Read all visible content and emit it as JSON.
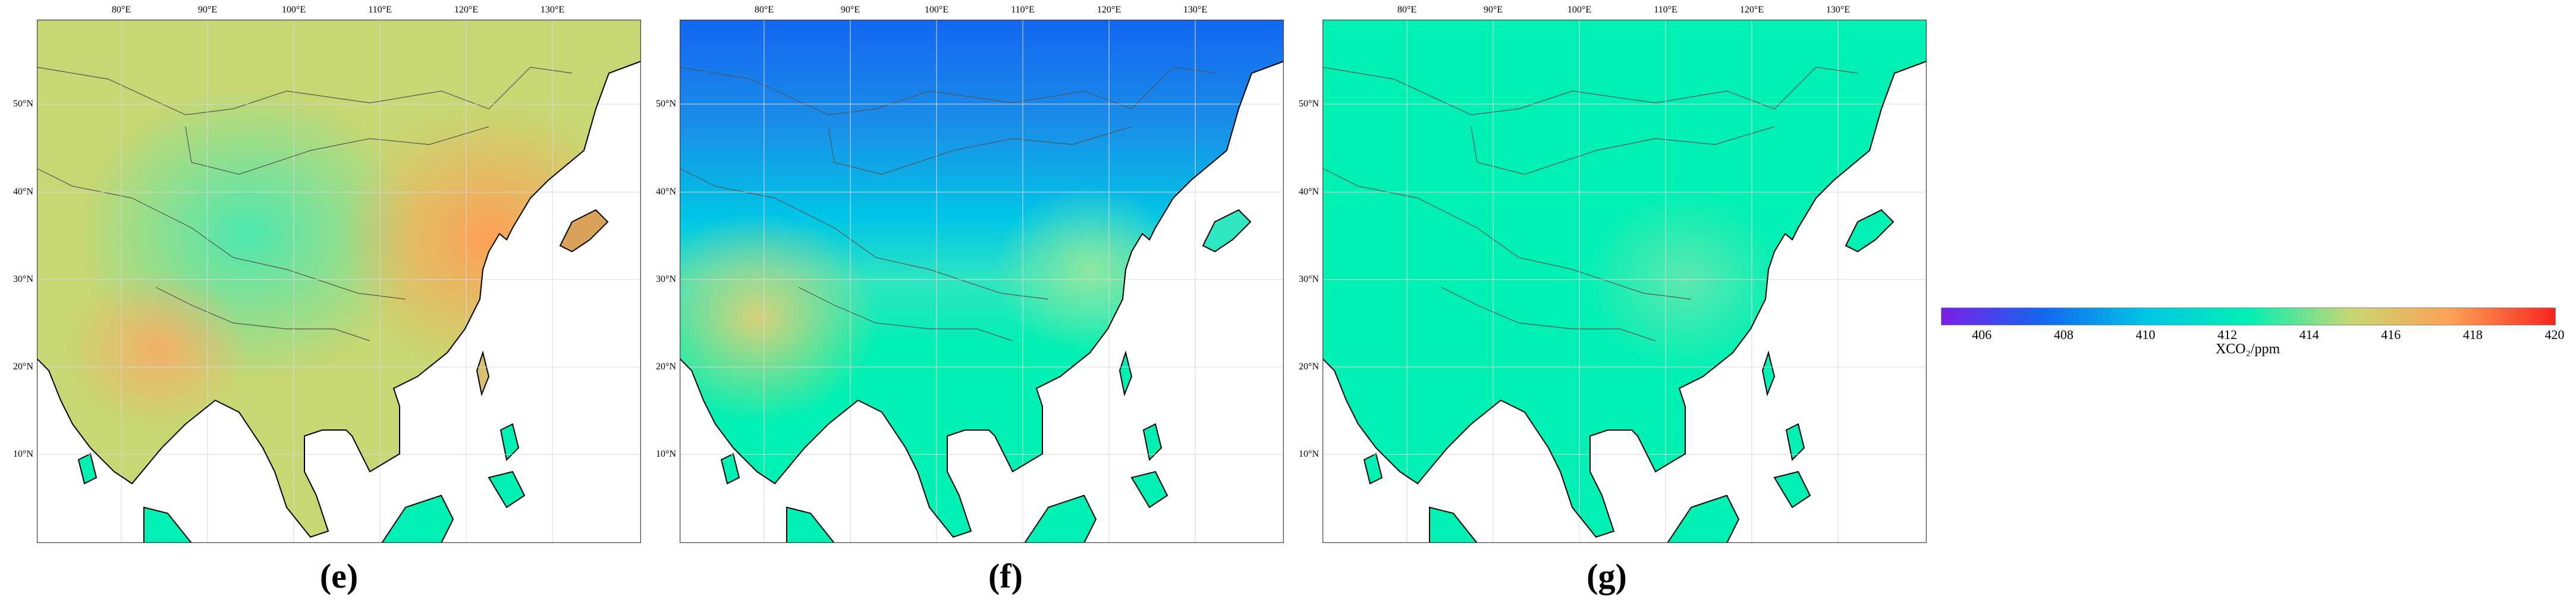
{
  "colors": {
    "scale": [
      "#7b1fe8",
      "#1267f0",
      "#00c6e6",
      "#00f0b4",
      "#c8d773",
      "#ffa055",
      "#f5241e"
    ],
    "coastline": "#000000",
    "border": "#555555",
    "grid": "#d9d9d9",
    "frame": "#4a4a4a"
  },
  "axes": {
    "lon_ticks": [
      "80°E",
      "90°E",
      "100°E",
      "110°E",
      "120°E",
      "130°E"
    ],
    "lat_ticks": [
      "50°N",
      "40°N",
      "30°N",
      "20°N",
      "10°N"
    ],
    "lon_range": [
      70,
      140
    ],
    "lat_range": [
      -1,
      59
    ]
  },
  "panels": [
    {
      "label": "(e)",
      "mean_ppm": 414.8,
      "hotspot_ppm": 416.5,
      "plateau_ppm": 413.2
    },
    {
      "label": "(f)",
      "north_ppm": 407.8,
      "south_ppm": 414.2,
      "mid_ppm": 411.5
    },
    {
      "label": "(g)",
      "mean_ppm": 412.5,
      "hotspot_ppm": 413.8
    }
  ],
  "colorbar": {
    "min": 405,
    "max": 420,
    "ticks": [
      "406",
      "408",
      "410",
      "412",
      "414",
      "416",
      "418",
      "420"
    ],
    "title": "XCO₂/ppm"
  }
}
